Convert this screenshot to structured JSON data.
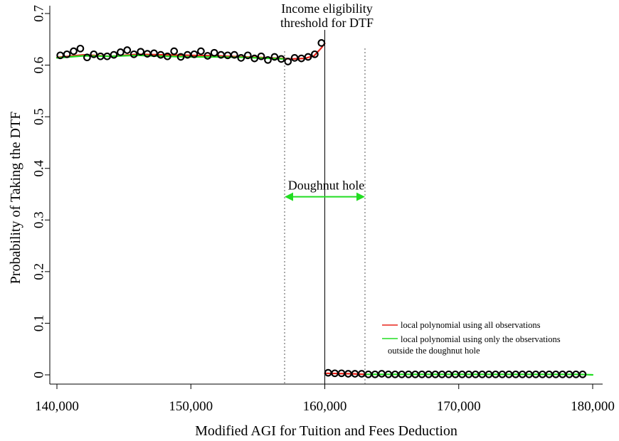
{
  "chart_data": {
    "type": "scatter",
    "title": "",
    "xlabel": "Modified AGI for Tuition and Fees Deduction",
    "ylabel": "Probability of Taking the DTF",
    "xlim": [
      140000,
      180000
    ],
    "ylim": [
      0,
      0.7
    ],
    "x_ticks": [
      140000,
      150000,
      160000,
      170000,
      180000
    ],
    "x_tick_labels": [
      "140,000",
      "150,000",
      "160,000",
      "170,000",
      "180,000"
    ],
    "y_ticks": [
      0,
      0.1,
      0.2,
      0.3,
      0.4,
      0.5,
      0.6,
      0.7
    ],
    "y_tick_labels": [
      "0",
      "0.1",
      "0.2",
      "0.3",
      "0.4",
      "0.5",
      "0.6",
      "0.7"
    ],
    "grid": false,
    "legend_position": "bottom-right",
    "threshold": {
      "x": 160000,
      "label_line1": "Income eligibility",
      "label_line2": "threshold for DTF"
    },
    "doughnut": {
      "x_left": 157000,
      "x_right": 163000,
      "label": "Doughnut hole",
      "arrow_y": 0.345,
      "color": "#22dd22"
    },
    "series": [
      {
        "kind": "points",
        "color": "#000000",
        "x": [
          140250,
          140750,
          141250,
          141750,
          142250,
          142750,
          143250,
          143750,
          144250,
          144750,
          145250,
          145750,
          146250,
          146750,
          147250,
          147750,
          148250,
          148750,
          149250,
          149750,
          150250,
          150750,
          151250,
          151750,
          152250,
          152750,
          153250,
          153750,
          154250,
          154750,
          155250,
          155750,
          156250,
          156750,
          157250,
          157750,
          158250,
          158750,
          159250,
          159750,
          160250,
          160750,
          161250,
          161750,
          162250,
          162750,
          163250,
          163750,
          164250,
          164750,
          165250,
          165750,
          166250,
          166750,
          167250,
          167750,
          168250,
          168750,
          169250,
          169750,
          170250,
          170750,
          171250,
          171750,
          172250,
          172750,
          173250,
          173750,
          174250,
          174750,
          175250,
          175750,
          176250,
          176750,
          177250,
          177750,
          178250,
          178750,
          179250
        ],
        "y": [
          0.619,
          0.621,
          0.627,
          0.632,
          0.615,
          0.621,
          0.617,
          0.617,
          0.62,
          0.625,
          0.629,
          0.621,
          0.626,
          0.622,
          0.623,
          0.62,
          0.617,
          0.627,
          0.616,
          0.62,
          0.621,
          0.627,
          0.618,
          0.624,
          0.62,
          0.619,
          0.62,
          0.614,
          0.619,
          0.613,
          0.617,
          0.61,
          0.616,
          0.612,
          0.607,
          0.614,
          0.613,
          0.616,
          0.621,
          0.643,
          0.004,
          0.003,
          0.003,
          0.002,
          0.002,
          0.002,
          0.001,
          0.001,
          0.002,
          0.001,
          0.001,
          0.001,
          0.001,
          0.001,
          0.001,
          0.001,
          0.001,
          0.001,
          0.001,
          0.001,
          0.001,
          0.001,
          0.001,
          0.001,
          0.001,
          0.001,
          0.001,
          0.001,
          0.001,
          0.001,
          0.001,
          0.001,
          0.001,
          0.001,
          0.001,
          0.001,
          0.001,
          0.001,
          0.001
        ]
      },
      {
        "kind": "line",
        "name": "local polynomial using all observations",
        "color": "#e8231a",
        "segments": [
          {
            "x": [
              140000,
              142000,
              144000,
              146000,
              148000,
              150000,
              152000,
              154000,
              156000,
              157500,
              158500,
              159200,
              159700,
              160000
            ],
            "y": [
              0.615,
              0.62,
              0.617,
              0.621,
              0.62,
              0.619,
              0.618,
              0.616,
              0.614,
              0.612,
              0.613,
              0.618,
              0.632,
              0.642
            ]
          },
          {
            "x": [
              160000,
              162000,
              163000
            ],
            "y": [
              0.003,
              0.002,
              0.001
            ]
          }
        ]
      },
      {
        "kind": "line",
        "name": "local polynomial using only the observations",
        "name_line2": "outside the doughnut hole",
        "color": "#22dd22",
        "segments": [
          {
            "x": [
              140000,
              142000,
              144000,
              146000,
              148000,
              150000,
              152000,
              154000,
              156000,
              157000
            ],
            "y": [
              0.614,
              0.618,
              0.617,
              0.619,
              0.617,
              0.616,
              0.616,
              0.615,
              0.613,
              0.612
            ]
          },
          {
            "x": [
              163000,
              166000,
              170000,
              175000,
              179000,
              180000
            ],
            "y": [
              0.001,
              0.001,
              0.001,
              0.001,
              0.001,
              0.0
            ]
          }
        ]
      }
    ]
  }
}
